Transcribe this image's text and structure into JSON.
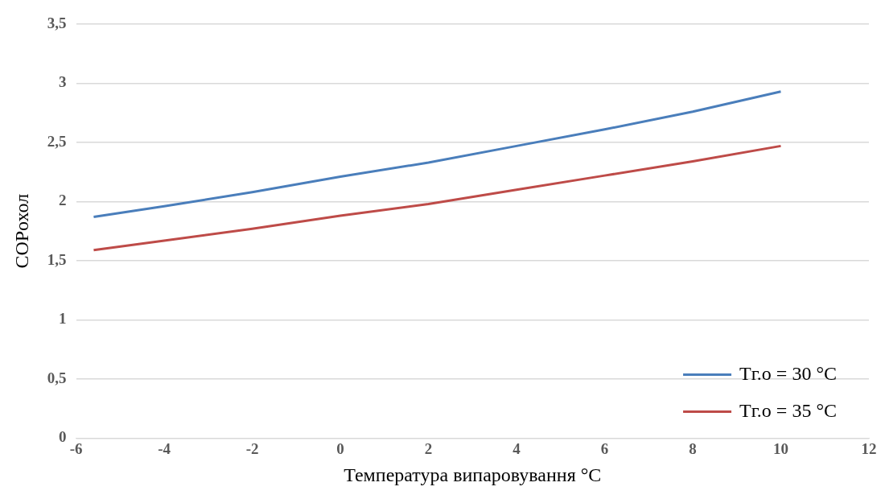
{
  "chart_data": {
    "type": "line",
    "xlabel": "Температура випаровування °C",
    "ylabel": "COPохол",
    "series": [
      {
        "name": "Тг.о = 30 °C",
        "color": "#4a7ebb",
        "x": [
          -5.6,
          -4,
          -2,
          0,
          2,
          4,
          6,
          8,
          10
        ],
        "values": [
          1.87,
          1.96,
          2.08,
          2.21,
          2.33,
          2.47,
          2.61,
          2.76,
          2.93
        ]
      },
      {
        "name": "Тг.о = 35 °C",
        "color": "#be4b48",
        "x": [
          -5.6,
          -4,
          -2,
          0,
          2,
          4,
          6,
          8,
          10
        ],
        "values": [
          1.59,
          1.67,
          1.77,
          1.88,
          1.98,
          2.1,
          2.22,
          2.34,
          2.47
        ]
      }
    ],
    "xlim": [
      -6,
      12
    ],
    "xticks": [
      -6,
      -4,
      -2,
      0,
      2,
      4,
      6,
      8,
      10,
      12
    ],
    "ylim": [
      0,
      3.5
    ],
    "yticks": [
      0,
      {
        "value": 0.5,
        "label": "0,5"
      },
      1,
      {
        "value": 1.5,
        "label": "1,5"
      },
      2,
      {
        "value": 2.5,
        "label": "2,5"
      },
      3,
      {
        "value": 3.5,
        "label": "3,5"
      }
    ],
    "grid": "y",
    "legend": "bottom right",
    "marker": "none",
    "line_style": "solid"
  }
}
